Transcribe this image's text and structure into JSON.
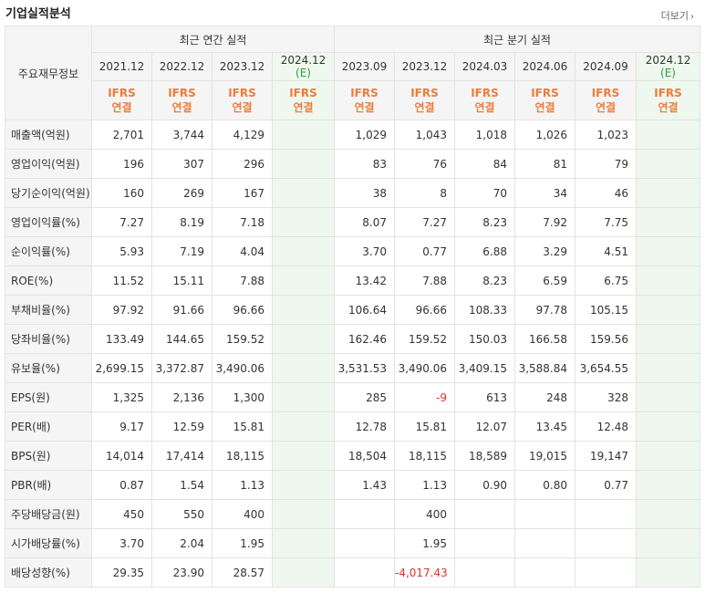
{
  "header": {
    "title": "기업실적분석",
    "more_label": "더보기",
    "more_icon": "chevron-right-icon"
  },
  "table": {
    "row_header_label": "주요재무정보",
    "annual_group_label": "최근 연간 실적",
    "quarter_group_label": "최근 분기 실적",
    "annual_periods": [
      "2021.12",
      "2022.12",
      "2023.12",
      "2024.12"
    ],
    "annual_estimate_mark": "(E)",
    "quarter_periods": [
      "2023.09",
      "2023.12",
      "2024.03",
      "2024.06",
      "2024.09",
      "2024.12"
    ],
    "quarter_estimate_mark": "(E)",
    "ifrs_top": "IFRS",
    "ifrs_bottom": "연결",
    "negative_color": "#e0312e",
    "ifrs_color": "#ee7c38",
    "estimate_mark_color": "#2e9a3e",
    "rows": [
      {
        "label": "매출액(억원)",
        "annual": [
          "2,701",
          "3,744",
          "4,129",
          ""
        ],
        "quarter": [
          "1,029",
          "1,043",
          "1,018",
          "1,026",
          "1,023",
          ""
        ]
      },
      {
        "label": "영업이익(억원)",
        "annual": [
          "196",
          "307",
          "296",
          ""
        ],
        "quarter": [
          "83",
          "76",
          "84",
          "81",
          "79",
          ""
        ]
      },
      {
        "label": "당기순이익(억원)",
        "annual": [
          "160",
          "269",
          "167",
          ""
        ],
        "quarter": [
          "38",
          "8",
          "70",
          "34",
          "46",
          ""
        ]
      },
      {
        "label": "영업이익률(%)",
        "annual": [
          "7.27",
          "8.19",
          "7.18",
          ""
        ],
        "quarter": [
          "8.07",
          "7.27",
          "8.23",
          "7.92",
          "7.75",
          ""
        ]
      },
      {
        "label": "순이익률(%)",
        "annual": [
          "5.93",
          "7.19",
          "4.04",
          ""
        ],
        "quarter": [
          "3.70",
          "0.77",
          "6.88",
          "3.29",
          "4.51",
          ""
        ]
      },
      {
        "label": "ROE(%)",
        "annual": [
          "11.52",
          "15.11",
          "7.88",
          ""
        ],
        "quarter": [
          "13.42",
          "7.88",
          "8.23",
          "6.59",
          "6.75",
          ""
        ]
      },
      {
        "label": "부채비율(%)",
        "annual": [
          "97.92",
          "91.66",
          "96.66",
          ""
        ],
        "quarter": [
          "106.64",
          "96.66",
          "108.33",
          "97.78",
          "105.15",
          ""
        ]
      },
      {
        "label": "당좌비율(%)",
        "annual": [
          "133.49",
          "144.65",
          "159.52",
          ""
        ],
        "quarter": [
          "162.46",
          "159.52",
          "150.03",
          "166.58",
          "159.56",
          ""
        ]
      },
      {
        "label": "유보율(%)",
        "annual": [
          "2,699.15",
          "3,372.87",
          "3,490.06",
          ""
        ],
        "quarter": [
          "3,531.53",
          "3,490.06",
          "3,409.15",
          "3,588.84",
          "3,654.55",
          ""
        ]
      },
      {
        "label": "EPS(원)",
        "annual": [
          "1,325",
          "2,136",
          "1,300",
          ""
        ],
        "quarter": [
          "285",
          "-9",
          "613",
          "248",
          "328",
          ""
        ]
      },
      {
        "label": "PER(배)",
        "annual": [
          "9.17",
          "12.59",
          "15.81",
          ""
        ],
        "quarter": [
          "12.78",
          "15.81",
          "12.07",
          "13.45",
          "12.48",
          ""
        ]
      },
      {
        "label": "BPS(원)",
        "annual": [
          "14,014",
          "17,414",
          "18,115",
          ""
        ],
        "quarter": [
          "18,504",
          "18,115",
          "18,589",
          "19,015",
          "19,147",
          ""
        ]
      },
      {
        "label": "PBR(배)",
        "annual": [
          "0.87",
          "1.54",
          "1.13",
          ""
        ],
        "quarter": [
          "1.43",
          "1.13",
          "0.90",
          "0.80",
          "0.77",
          ""
        ]
      },
      {
        "label": "주당배당금(원)",
        "annual": [
          "450",
          "550",
          "400",
          ""
        ],
        "quarter": [
          "",
          "400",
          "",
          "",
          "",
          ""
        ]
      },
      {
        "label": "시가배당률(%)",
        "annual": [
          "3.70",
          "2.04",
          "1.95",
          ""
        ],
        "quarter": [
          "",
          "1.95",
          "",
          "",
          "",
          ""
        ]
      },
      {
        "label": "배당성향(%)",
        "annual": [
          "29.35",
          "23.90",
          "28.57",
          ""
        ],
        "quarter": [
          "",
          "-4,017.43",
          "",
          "",
          "",
          ""
        ]
      }
    ]
  }
}
